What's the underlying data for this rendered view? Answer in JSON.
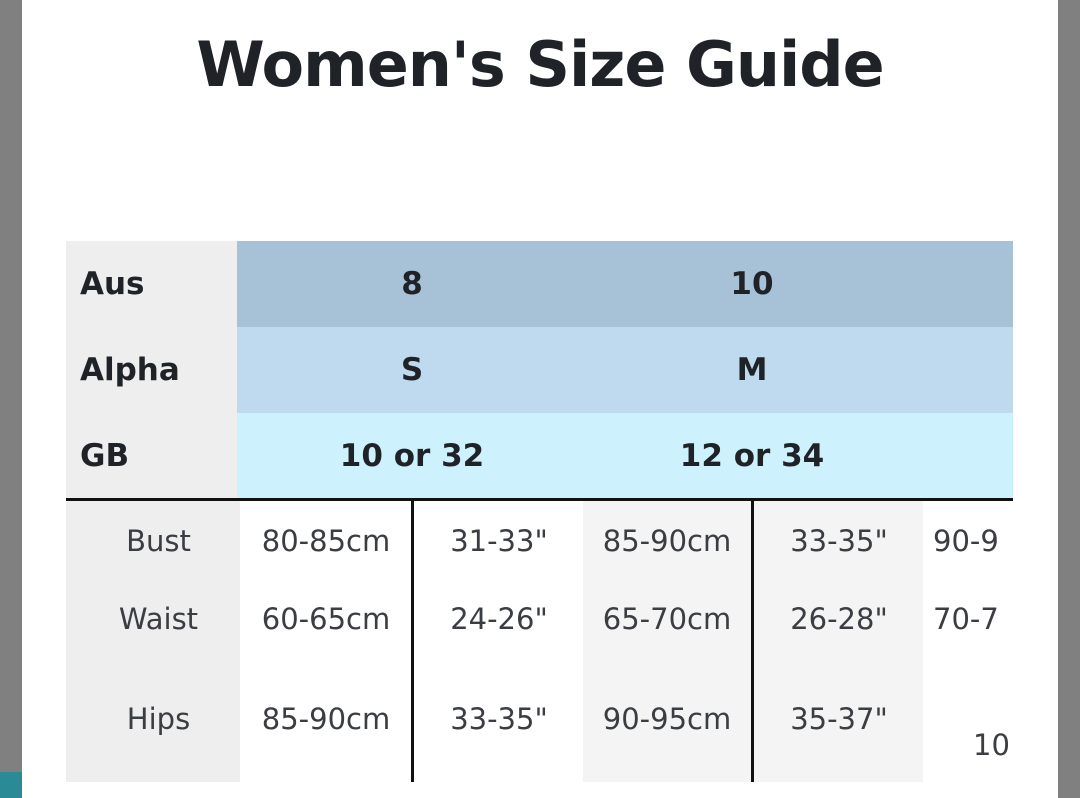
{
  "header": {
    "title": "Women's Size Guide"
  },
  "table": {
    "header_rows": [
      [
        "Aus",
        "8",
        "10"
      ],
      [
        "Alpha",
        "S",
        "M"
      ],
      [
        "GB",
        "10 or 32",
        "12 or 34"
      ]
    ],
    "body_rows": [
      [
        "Bust",
        "80-85cm",
        "31-33\"",
        "85-90cm",
        "33-35\"",
        "90-9"
      ],
      [
        "Waist",
        "60-65cm",
        "24-26\"",
        "65-70cm",
        "26-28\"",
        "70-7"
      ],
      [
        "Hips",
        "85-90cm",
        "33-35\"",
        "90-95cm",
        "35-37\"",
        "10"
      ]
    ]
  }
}
